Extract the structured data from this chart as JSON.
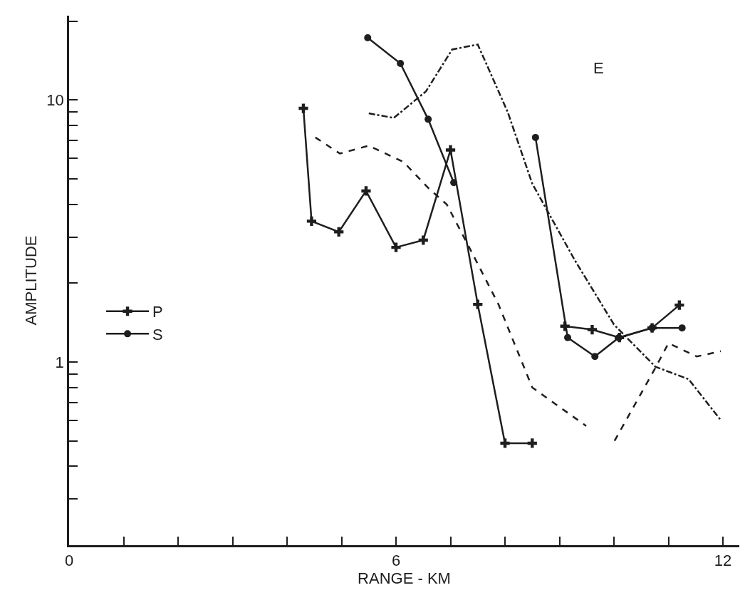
{
  "chart_data": {
    "type": "line",
    "xlabel": "RANGE - KM",
    "ylabel": "AMPLITUDE",
    "log": "y",
    "xlim": [
      0,
      12.3
    ],
    "ylim": [
      0.2,
      21
    ],
    "xticks": [
      0,
      {
        "value": 1,
        "label": null
      },
      {
        "value": 2,
        "label": null
      },
      {
        "value": 3,
        "label": null
      },
      {
        "value": 4,
        "label": null
      },
      {
        "value": 5,
        "label": null
      },
      6,
      {
        "value": 7,
        "label": null
      },
      {
        "value": 8,
        "label": null
      },
      {
        "value": 9,
        "label": null
      },
      {
        "value": 10,
        "label": null
      },
      {
        "value": 11,
        "label": null
      },
      12
    ],
    "yticks": [
      {
        "value": 0.3,
        "label": null
      },
      {
        "value": 0.4,
        "label": null
      },
      {
        "value": 0.5,
        "label": null
      },
      {
        "value": 0.6,
        "label": null
      },
      {
        "value": 0.7,
        "label": null
      },
      {
        "value": 0.8,
        "label": null
      },
      {
        "value": 0.9,
        "label": null
      },
      1,
      {
        "value": 2,
        "label": null
      },
      {
        "value": 3,
        "label": null
      },
      {
        "value": 4,
        "label": null
      },
      {
        "value": 5,
        "label": null
      },
      {
        "value": 6,
        "label": null
      },
      {
        "value": 7,
        "label": null
      },
      {
        "value": 8,
        "label": null
      },
      {
        "value": 9,
        "label": null
      },
      10,
      {
        "value": 20,
        "label": null
      }
    ],
    "legend": "left",
    "annotations": [
      "E"
    ],
    "series": [
      {
        "name": "P",
        "color": "#1e1e1e",
        "marker": "cross",
        "line_style": "solid",
        "x": [
          4.3,
          4.45,
          4.95,
          5.45,
          6.0,
          6.5,
          7.0,
          7.5,
          8.0,
          8.5,
          null,
          9.1,
          9.6,
          10.1,
          10.7,
          11.2
        ],
        "values": [
          9.3,
          3.45,
          3.14,
          4.5,
          2.74,
          2.92,
          6.45,
          1.66,
          0.49,
          0.49,
          null,
          1.37,
          1.33,
          1.24,
          1.35,
          1.65
        ]
      },
      {
        "color": "#1e1e1e",
        "marker": "none",
        "line_style": "dashed",
        "x": [
          4.52,
          4.97,
          5.5,
          6.14,
          6.6,
          6.93,
          7.36,
          7.88,
          8.5,
          9.49,
          null,
          10.01,
          10.76,
          11.0,
          11.52,
          11.96
        ],
        "values": [
          7.2,
          6.25,
          6.7,
          5.8,
          4.6,
          4.0,
          2.7,
          1.66,
          0.8,
          0.57,
          null,
          0.5,
          0.95,
          1.18,
          1.05,
          1.1
        ]
      },
      {
        "name": "S",
        "color": "#1e1e1e",
        "marker": "circle",
        "line_style": "solid",
        "x": [
          5.48,
          6.08,
          6.59,
          7.06,
          null,
          8.56,
          9.15,
          9.65,
          10.09,
          10.7,
          11.25
        ],
        "values": [
          17.3,
          13.8,
          8.45,
          4.84,
          null,
          7.2,
          1.24,
          1.05,
          1.24,
          1.35,
          1.35
        ]
      },
      {
        "color": "#1e1e1e",
        "marker": "none",
        "line_style": "dashdot",
        "x": [
          5.5,
          5.96,
          6.55,
          7.03,
          7.5,
          8.05,
          8.5,
          9.28,
          10.0,
          10.76,
          11.37,
          11.96
        ],
        "values": [
          8.9,
          8.55,
          10.8,
          15.6,
          16.3,
          9.0,
          4.8,
          2.45,
          1.39,
          0.96,
          0.86,
          0.6
        ]
      }
    ]
  }
}
